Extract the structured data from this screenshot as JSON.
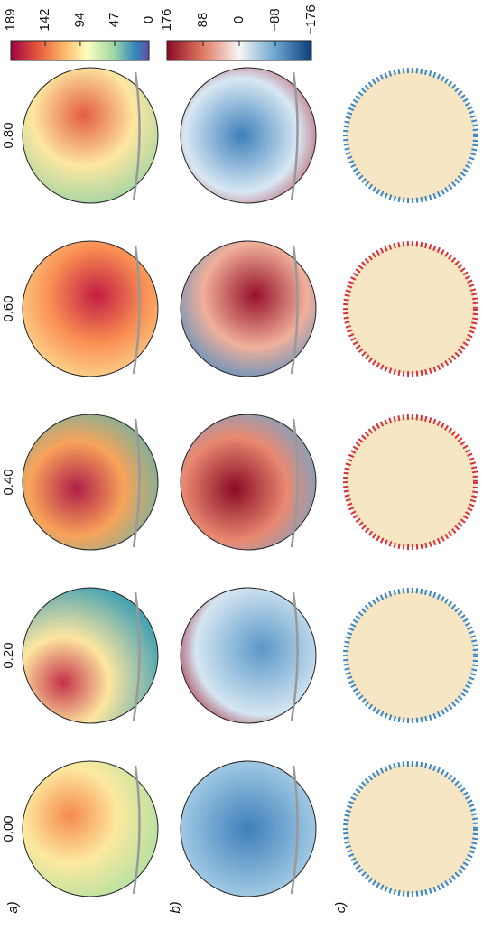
{
  "panels": [
    {
      "label": "a)"
    },
    {
      "label": "b)"
    },
    {
      "label": "c)"
    }
  ],
  "columns": [
    "0.00",
    "0.20",
    "0.40",
    "0.60",
    "0.80"
  ],
  "colorbars": [
    {
      "lim": [
        189,
        0
      ],
      "ticks": [
        189,
        142,
        94,
        47,
        0
      ]
    },
    {
      "lim": [
        176,
        -176
      ],
      "ticks": [
        176,
        88,
        0,
        {
          "value": -88,
          "label": "−88"
        },
        {
          "value": -176,
          "label": "−176"
        }
      ]
    }
  ]
}
